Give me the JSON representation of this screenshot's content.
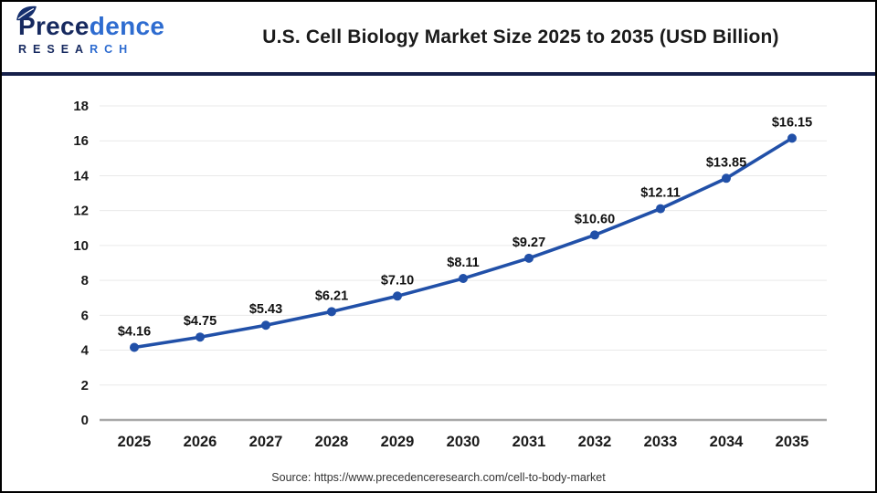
{
  "header": {
    "logo": {
      "brand_dark": "Prece",
      "brand_light": "dence",
      "sub_dark": "RESEA",
      "sub_light": "RCH",
      "leaf_color": "#16306e"
    },
    "title": "U.S. Cell Biology Market Size 2025 to 2035 (USD Billion)"
  },
  "chart_data": {
    "type": "line",
    "title": "U.S. Cell Biology Market Size 2025 to 2035 (USD Billion)",
    "categories": [
      "2025",
      "2026",
      "2027",
      "2028",
      "2029",
      "2030",
      "2031",
      "2032",
      "2033",
      "2034",
      "2035"
    ],
    "values": [
      4.16,
      4.75,
      5.43,
      6.21,
      7.1,
      8.11,
      9.27,
      10.6,
      12.11,
      13.85,
      16.15
    ],
    "labels": [
      "$4.16",
      "$4.75",
      "$5.43",
      "$6.21",
      "$7.10",
      "$8.11",
      "$9.27",
      "$10.60",
      "$12.11",
      "$13.85",
      "$16.15"
    ],
    "xlabel": "",
    "ylabel": "",
    "ylim": [
      0,
      18
    ],
    "yticks": [
      0,
      2,
      4,
      6,
      8,
      10,
      12,
      14,
      16,
      18
    ],
    "grid": "horizontal",
    "legend": "none",
    "line_color": "#2150a8",
    "marker": "circle",
    "grid_color": "#e9e9e9",
    "axis_color": "#a8a8a8"
  },
  "footer": {
    "source": "Source: https://www.precedenceresearch.com/cell-to-body-market"
  }
}
